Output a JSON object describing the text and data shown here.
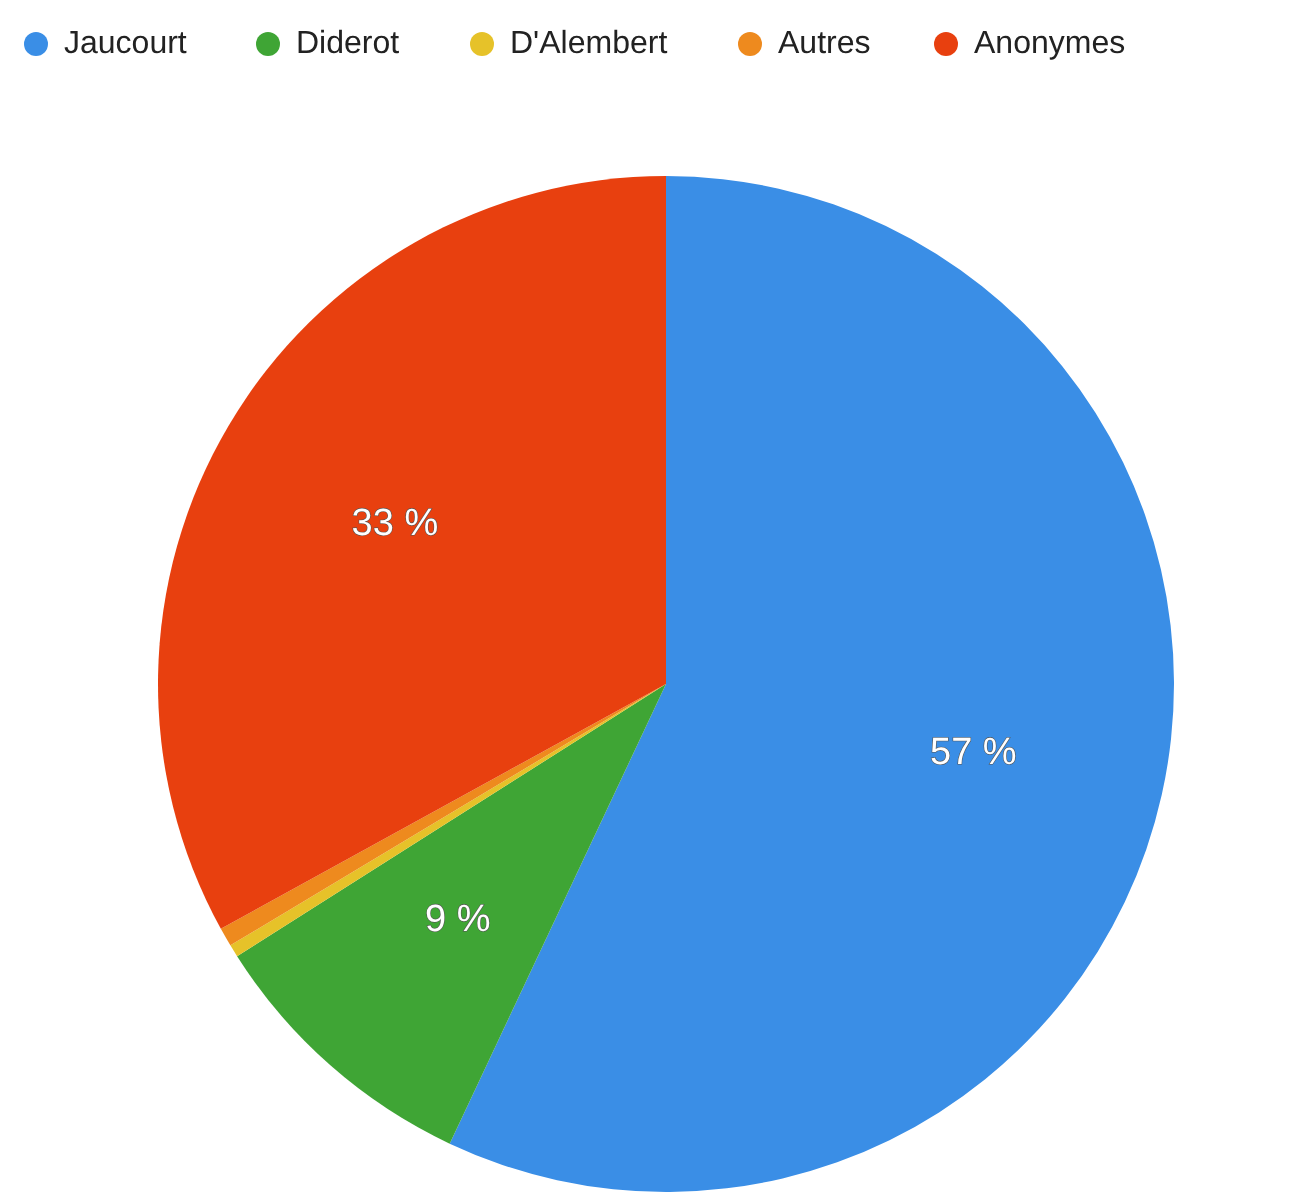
{
  "chart_data": {
    "type": "pie",
    "categories": [
      "Jaucourt",
      "Diderot",
      "D'Alembert",
      "Autres",
      "Anonymes"
    ],
    "values": [
      57,
      9,
      0.4,
      0.6,
      33
    ],
    "colors": [
      "#3a8ee6",
      "#3fa535",
      "#e6c229",
      "#ee8a1e",
      "#e8400f"
    ],
    "value_labels": [
      "57 %",
      "9 %",
      null,
      null,
      "33 %"
    ],
    "legend": "top"
  }
}
